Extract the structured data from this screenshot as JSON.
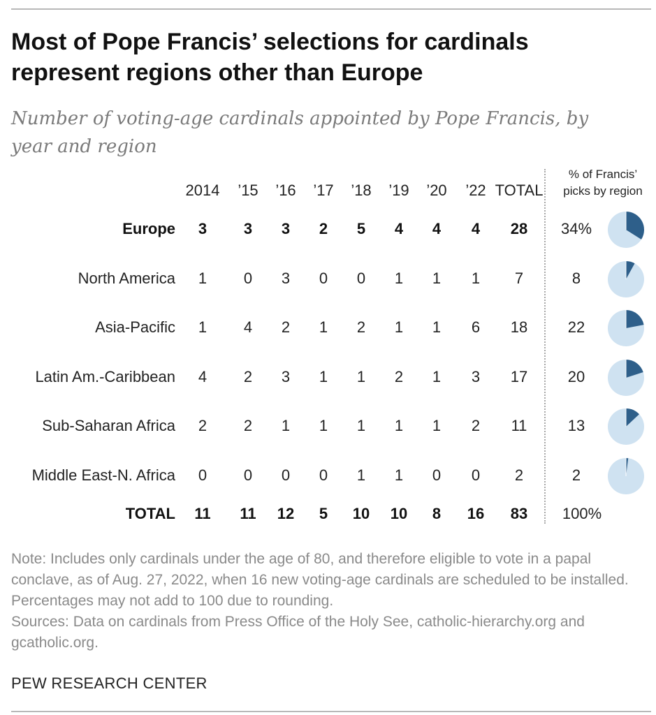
{
  "title": "Most of Pope Francis’ selections for cardinals represent regions other than Europe",
  "subtitle": "Number of voting-age cardinals appointed by Pope Francis, by year and region",
  "columns": [
    "2014",
    "’15",
    "’16",
    "’17",
    "’18",
    "’19",
    "’20",
    "’22",
    "TOTAL"
  ],
  "pct_header_line1": "% of Francis’",
  "pct_header_line2": "picks by region",
  "rows": [
    {
      "label": "Europe",
      "values": [
        "3",
        "3",
        "3",
        "2",
        "5",
        "4",
        "4",
        "4",
        "28"
      ],
      "pct": "34%"
    },
    {
      "label": "North America",
      "values": [
        "1",
        "0",
        "3",
        "0",
        "0",
        "1",
        "1",
        "1",
        "7"
      ],
      "pct": "8"
    },
    {
      "label": "Asia-Pacific",
      "values": [
        "1",
        "4",
        "2",
        "1",
        "2",
        "1",
        "1",
        "6",
        "18"
      ],
      "pct": "22"
    },
    {
      "label": "Latin Am.-Caribbean",
      "values": [
        "4",
        "2",
        "3",
        "1",
        "1",
        "2",
        "1",
        "3",
        "17"
      ],
      "pct": "20"
    },
    {
      "label": "Sub-Saharan Africa",
      "values": [
        "2",
        "2",
        "1",
        "1",
        "1",
        "1",
        "1",
        "2",
        "11"
      ],
      "pct": "13"
    },
    {
      "label": "Middle East-N. Africa",
      "values": [
        "0",
        "0",
        "0",
        "0",
        "1",
        "1",
        "0",
        "0",
        "2"
      ],
      "pct": "2"
    }
  ],
  "total_row": {
    "label": "TOTAL",
    "values": [
      "11",
      "11",
      "12",
      "5",
      "10",
      "10",
      "8",
      "16",
      "83"
    ],
    "pct": "100%"
  },
  "note": "Note: Includes only cardinals under the age of 80, and therefore eligible to vote in a papal conclave, as of Aug. 27, 2022, when 16 new voting-age cardinals are scheduled to be installed. Percentages may not add to 100 due to rounding.",
  "sources": "Sources: Data on cardinals from Press Office of the Holy See, catholic-hierarchy.org and gcatholic.org.",
  "source_org": "PEW RESEARCH CENTER",
  "colors": {
    "pie_fill": "#2e5f8a",
    "pie_bg": "#cfe2f1"
  },
  "chart_data": {
    "type": "table",
    "title": "Most of Pope Francis’ selections for cardinals represent regions other than Europe",
    "categories": [
      "2014",
      "’15",
      "’16",
      "’17",
      "’18",
      "’19",
      "’20",
      "’22",
      "TOTAL"
    ],
    "series": [
      {
        "name": "Europe",
        "values": [
          3,
          3,
          3,
          2,
          5,
          4,
          4,
          4,
          28
        ]
      },
      {
        "name": "North America",
        "values": [
          1,
          0,
          3,
          0,
          0,
          1,
          1,
          1,
          7
        ]
      },
      {
        "name": "Asia-Pacific",
        "values": [
          1,
          4,
          2,
          1,
          2,
          1,
          1,
          6,
          18
        ]
      },
      {
        "name": "Latin Am.-Caribbean",
        "values": [
          4,
          2,
          3,
          1,
          1,
          2,
          1,
          3,
          17
        ]
      },
      {
        "name": "Sub-Saharan Africa",
        "values": [
          2,
          2,
          1,
          1,
          1,
          1,
          1,
          2,
          11
        ]
      },
      {
        "name": "Middle East-N. Africa",
        "values": [
          0,
          0,
          0,
          0,
          1,
          1,
          0,
          0,
          2
        ]
      },
      {
        "name": "TOTAL",
        "values": [
          11,
          11,
          12,
          5,
          10,
          10,
          8,
          16,
          83
        ]
      }
    ],
    "pct_by_region": [
      34,
      8,
      22,
      20,
      13,
      2
    ],
    "pct_total": 100
  }
}
